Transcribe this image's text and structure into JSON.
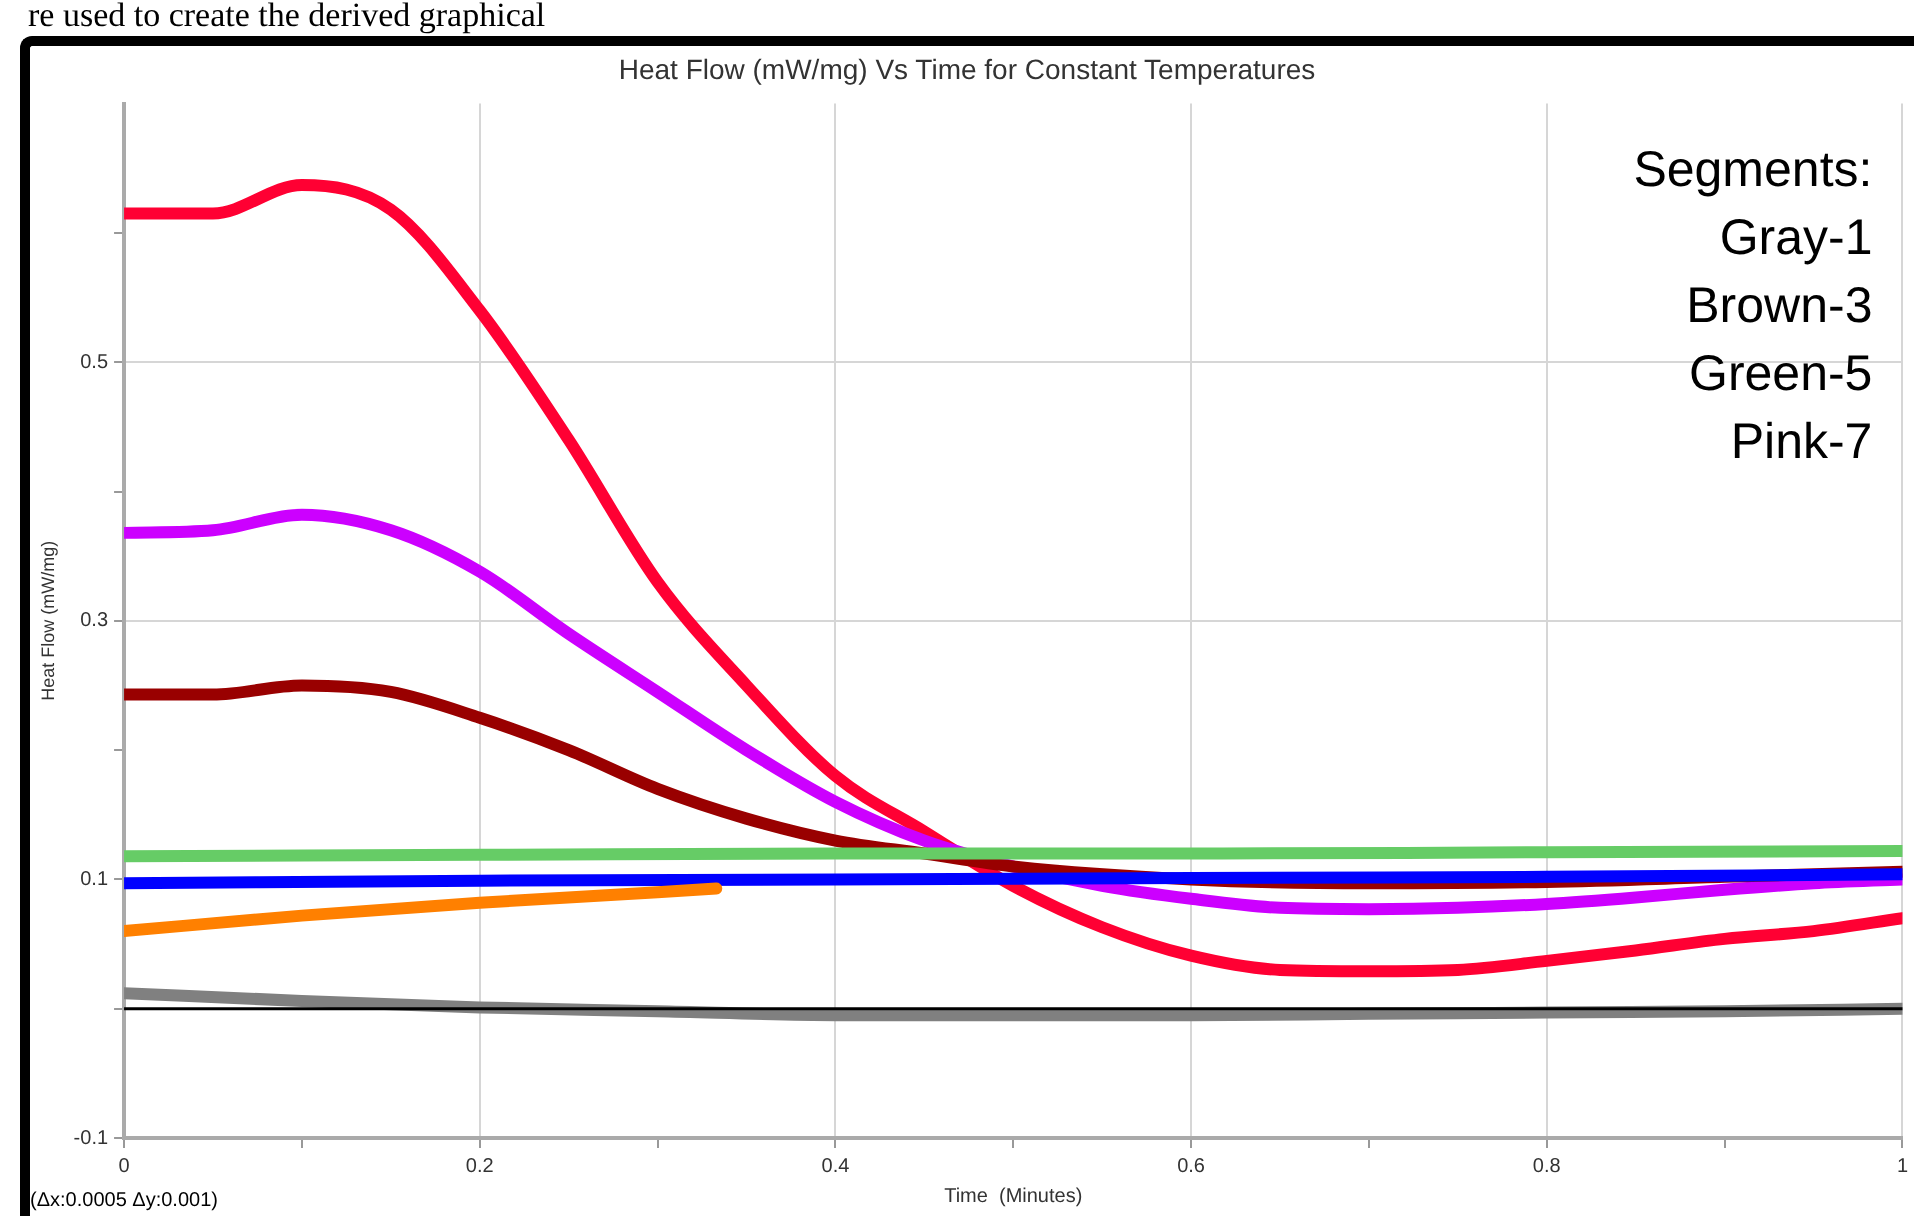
{
  "chart_data": {
    "type": "line",
    "title": "Heat Flow (mW/mg) Vs Time for Constant Temperatures",
    "xlabel": "Time  (Minutes)",
    "ylabel": "Heat Flow (mW/mg)",
    "annotations": [
      "re used to create the derived graphical",
      "Segments:",
      "Gray-1",
      "Brown-3",
      "Green-5",
      "Pink-7",
      "(Δx:0.0005 Δy:0.001)"
    ],
    "xlim": [
      0,
      1
    ],
    "xticks": [
      0,
      {
        "value": 0.1,
        "label": null
      },
      0.2,
      {
        "value": 0.3,
        "label": null
      },
      0.4,
      {
        "value": 0.5,
        "label": null
      },
      0.6,
      {
        "value": 0.7,
        "label": null
      },
      0.8,
      {
        "value": 0.9,
        "label": null
      },
      1
    ],
    "ylim": [
      -0.1,
      0.7
    ],
    "yticks": [
      -0.1,
      {
        "value": 0,
        "label": null
      },
      0.1,
      {
        "value": 0.2,
        "label": null
      },
      0.3,
      {
        "value": 0.4,
        "label": null
      },
      0.5,
      {
        "value": 0.6,
        "label": null
      }
    ],
    "grid": true,
    "marker": "none",
    "line_style": "solid",
    "ref_lines": [
      {
        "axis": "y",
        "value": 0,
        "label": null,
        "color": "#000000"
      }
    ],
    "series": [
      {
        "color": "#808080",
        "x": [
          0,
          0.1,
          0.2,
          0.3,
          0.4,
          0.5,
          0.6,
          0.7,
          0.8,
          0.9,
          1
        ],
        "values": [
          0.012,
          0.006,
          0.001,
          -0.002,
          -0.005,
          -0.005,
          -0.005,
          -0.004,
          -0.003,
          -0.002,
          0
        ]
      },
      {
        "color": "#ff8000",
        "x": [
          0,
          0.1,
          0.2,
          0.3,
          0.333
        ],
        "values": [
          0.06,
          0.072,
          0.082,
          0.09,
          0.093
        ]
      },
      {
        "color": "#0000ff",
        "x": [
          0,
          0.2,
          0.4,
          0.6,
          0.8,
          1
        ],
        "values": [
          0.097,
          0.099,
          0.1,
          0.101,
          0.102,
          0.104
        ]
      },
      {
        "color": "#66cc66",
        "x": [
          0,
          0.2,
          0.4,
          0.6,
          0.8,
          1
        ],
        "values": [
          0.118,
          0.119,
          0.12,
          0.12,
          0.121,
          0.122
        ]
      },
      {
        "color": "#990000",
        "x": [
          0,
          0.05,
          0.1,
          0.15,
          0.2,
          0.25,
          0.3,
          0.35,
          0.4,
          0.45,
          0.5,
          0.6,
          0.7,
          0.8,
          0.9,
          1
        ],
        "values": [
          0.243,
          0.243,
          0.25,
          0.245,
          0.225,
          0.2,
          0.17,
          0.147,
          0.13,
          0.12,
          0.11,
          0.1,
          0.097,
          0.098,
          0.102,
          0.106
        ]
      },
      {
        "color": "#cc00ff",
        "x": [
          0,
          0.05,
          0.1,
          0.15,
          0.2,
          0.25,
          0.3,
          0.35,
          0.4,
          0.45,
          0.5,
          0.55,
          0.6,
          0.65,
          0.7,
          0.75,
          0.8,
          0.85,
          0.9,
          0.95,
          1
        ],
        "values": [
          0.368,
          0.37,
          0.382,
          0.37,
          0.338,
          0.29,
          0.245,
          0.2,
          0.16,
          0.13,
          0.11,
          0.095,
          0.085,
          0.078,
          0.077,
          0.078,
          0.081,
          0.086,
          0.092,
          0.097,
          0.1
        ]
      },
      {
        "color": "#ff0033",
        "x": [
          0,
          0.05,
          0.1,
          0.15,
          0.2,
          0.25,
          0.3,
          0.35,
          0.4,
          0.45,
          0.5,
          0.55,
          0.6,
          0.65,
          0.7,
          0.75,
          0.8,
          0.85,
          0.9,
          0.95,
          1
        ],
        "values": [
          0.615,
          0.615,
          0.637,
          0.618,
          0.54,
          0.44,
          0.33,
          0.25,
          0.18,
          0.137,
          0.095,
          0.063,
          0.041,
          0.03,
          0.029,
          0.03,
          0.037,
          0.045,
          0.054,
          0.06,
          0.07
        ]
      }
    ]
  }
}
